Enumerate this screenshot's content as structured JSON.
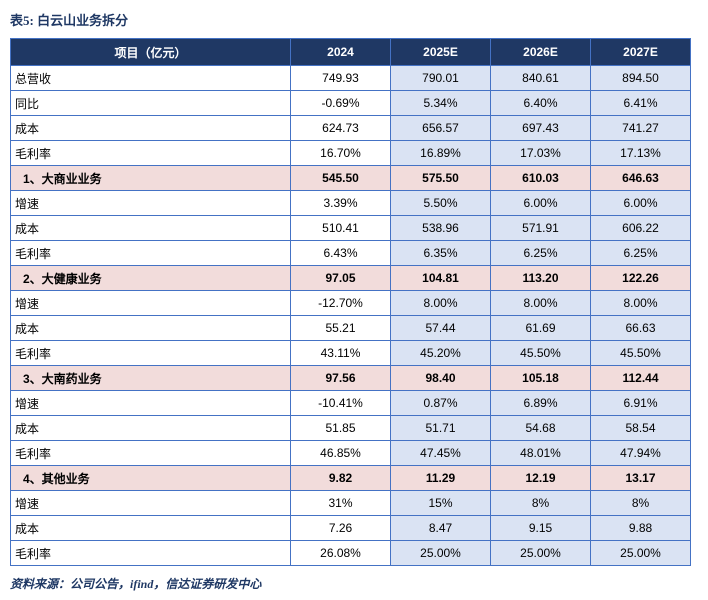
{
  "title": "表5: 白云山业务拆分",
  "footer": "资料来源：公司公告，ifind，信达证券研发中心",
  "colors": {
    "header_bg": "#1F3864",
    "header_text": "#ffffff",
    "category_row_bg": "#F2DCDB",
    "estimate_col_bg": "#DAE3F3",
    "border": "#4472C4",
    "title_text": "#1F3864"
  },
  "table": {
    "headers": [
      "项目（亿元）",
      "2024",
      "2025E",
      "2026E",
      "2027E"
    ],
    "rows": [
      {
        "label": "总营收",
        "type": "normal",
        "values": [
          "749.93",
          "790.01",
          "840.61",
          "894.50"
        ]
      },
      {
        "label": "同比",
        "type": "normal",
        "values": [
          "-0.69%",
          "5.34%",
          "6.40%",
          "6.41%"
        ]
      },
      {
        "label": "成本",
        "type": "normal",
        "values": [
          "624.73",
          "656.57",
          "697.43",
          "741.27"
        ]
      },
      {
        "label": "毛利率",
        "type": "normal",
        "values": [
          "16.70%",
          "16.89%",
          "17.03%",
          "17.13%"
        ]
      },
      {
        "label": "1、大商业业务",
        "type": "category",
        "values": [
          "545.50",
          "575.50",
          "610.03",
          "646.63"
        ]
      },
      {
        "label": "增速",
        "type": "normal",
        "values": [
          "3.39%",
          "5.50%",
          "6.00%",
          "6.00%"
        ]
      },
      {
        "label": "成本",
        "type": "normal",
        "values": [
          "510.41",
          "538.96",
          "571.91",
          "606.22"
        ]
      },
      {
        "label": "毛利率",
        "type": "normal",
        "values": [
          "6.43%",
          "6.35%",
          "6.25%",
          "6.25%"
        ]
      },
      {
        "label": "2、大健康业务",
        "type": "category",
        "values": [
          "97.05",
          "104.81",
          "113.20",
          "122.26"
        ]
      },
      {
        "label": "增速",
        "type": "normal",
        "values": [
          "-12.70%",
          "8.00%",
          "8.00%",
          "8.00%"
        ]
      },
      {
        "label": "成本",
        "type": "normal",
        "values": [
          "55.21",
          "57.44",
          "61.69",
          "66.63"
        ]
      },
      {
        "label": "毛利率",
        "type": "normal",
        "values": [
          "43.11%",
          "45.20%",
          "45.50%",
          "45.50%"
        ]
      },
      {
        "label": "3、大南药业务",
        "type": "category",
        "values": [
          "97.56",
          "98.40",
          "105.18",
          "112.44"
        ]
      },
      {
        "label": "增速",
        "type": "normal",
        "values": [
          "-10.41%",
          "0.87%",
          "6.89%",
          "6.91%"
        ]
      },
      {
        "label": "成本",
        "type": "normal",
        "values": [
          "51.85",
          "51.71",
          "54.68",
          "58.54"
        ]
      },
      {
        "label": "毛利率",
        "type": "normal",
        "values": [
          "46.85%",
          "47.45%",
          "48.01%",
          "47.94%"
        ]
      },
      {
        "label": "4、其他业务",
        "type": "category",
        "values": [
          "9.82",
          "11.29",
          "12.19",
          "13.17"
        ]
      },
      {
        "label": "增速",
        "type": "normal",
        "values": [
          "31%",
          "15%",
          "8%",
          "8%"
        ]
      },
      {
        "label": "成本",
        "type": "normal",
        "values": [
          "7.26",
          "8.47",
          "9.15",
          "9.88"
        ]
      },
      {
        "label": "毛利率",
        "type": "normal",
        "values": [
          "26.08%",
          "25.00%",
          "25.00%",
          "25.00%"
        ]
      }
    ]
  }
}
